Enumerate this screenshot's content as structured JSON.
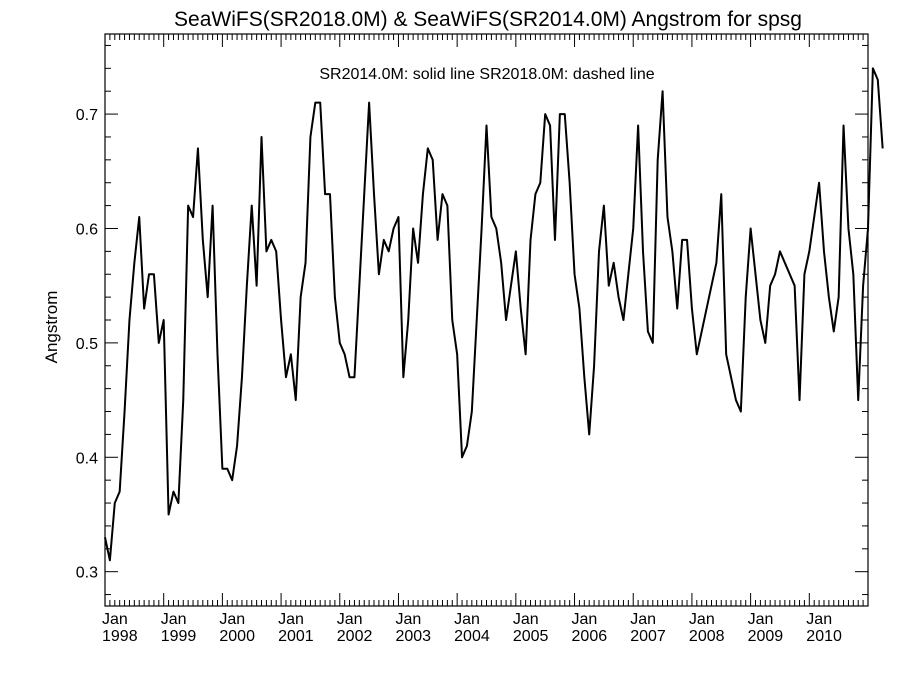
{
  "chart_data": {
    "type": "line",
    "title": "SeaWiFS(SR2018.0M) & SeaWiFS(SR2014.0M)  Angstrom for spsg",
    "annotation": "SR2014.0M: solid line   SR2018.0M: dashed line",
    "xlabel": "",
    "ylabel": "Angstrom",
    "xlim": [
      1998.0,
      2011.0
    ],
    "ylim": [
      0.27,
      0.77
    ],
    "y_ticks": [
      0.3,
      0.4,
      0.5,
      0.6,
      0.7
    ],
    "y_tick_labels": [
      "0.3",
      "0.4",
      "0.5",
      "0.6",
      "0.7"
    ],
    "x_ticks": [
      1998,
      1999,
      2000,
      2001,
      2002,
      2003,
      2004,
      2005,
      2006,
      2007,
      2008,
      2009,
      2010
    ],
    "x_tick_labels": [
      {
        "month": "Jan",
        "year": "1998"
      },
      {
        "month": "Jan",
        "year": "1999"
      },
      {
        "month": "Jan",
        "year": "2000"
      },
      {
        "month": "Jan",
        "year": "2001"
      },
      {
        "month": "Jan",
        "year": "2002"
      },
      {
        "month": "Jan",
        "year": "2003"
      },
      {
        "month": "Jan",
        "year": "2004"
      },
      {
        "month": "Jan",
        "year": "2005"
      },
      {
        "month": "Jan",
        "year": "2006"
      },
      {
        "month": "Jan",
        "year": "2007"
      },
      {
        "month": "Jan",
        "year": "2008"
      },
      {
        "month": "Jan",
        "year": "2009"
      },
      {
        "month": "Jan",
        "year": "2010"
      }
    ],
    "grid": false,
    "line_color": "#000000",
    "series": [
      {
        "name": "SR2014.0M",
        "style": "solid",
        "start": "1998-01",
        "frequency": "monthly",
        "values": [
          0.33,
          0.31,
          0.36,
          0.37,
          0.44,
          0.52,
          0.57,
          0.61,
          0.53,
          0.56,
          0.56,
          0.5,
          0.52,
          0.35,
          0.37,
          0.36,
          0.45,
          0.62,
          0.61,
          0.67,
          0.59,
          0.54,
          0.62,
          0.49,
          0.39,
          0.39,
          0.38,
          0.41,
          0.47,
          0.55,
          0.62,
          0.55,
          0.68,
          0.58,
          0.59,
          0.58,
          0.52,
          0.47,
          0.49,
          0.45,
          0.54,
          0.57,
          0.68,
          0.71,
          0.71,
          0.63,
          0.63,
          0.54,
          0.5,
          0.49,
          0.47,
          0.47,
          0.55,
          0.63,
          0.71,
          0.63,
          0.56,
          0.59,
          0.58,
          0.6,
          0.61,
          0.47,
          0.52,
          0.6,
          0.57,
          0.63,
          0.67,
          0.66,
          0.59,
          0.63,
          0.62,
          0.52,
          0.49,
          0.4,
          0.41,
          0.44,
          0.52,
          0.6,
          0.69,
          0.61,
          0.6,
          0.57,
          0.52,
          0.55,
          0.58,
          0.53,
          0.49,
          0.59,
          0.63,
          0.64,
          0.7,
          0.69,
          0.59,
          0.7,
          0.7,
          0.64,
          0.56,
          0.53,
          0.47,
          0.42,
          0.48,
          0.58,
          0.62,
          0.55,
          0.57,
          0.54,
          0.52,
          0.56,
          0.6,
          0.69,
          0.58,
          0.51,
          0.5,
          0.66,
          0.72,
          0.61,
          0.58,
          0.53,
          0.59,
          0.59,
          0.53,
          0.49,
          0.51,
          0.53,
          0.55,
          0.57,
          0.63,
          0.49,
          0.47,
          0.45,
          0.44,
          0.54,
          0.6,
          0.56,
          0.52,
          0.5,
          0.55,
          0.56,
          0.58,
          0.57,
          0.56,
          0.55,
          0.45,
          0.56,
          0.58,
          0.61,
          0.64,
          0.58,
          0.54,
          0.51,
          0.54,
          0.69,
          0.6,
          0.56,
          0.45,
          0.55,
          0.6,
          0.74,
          0.73,
          0.67
        ]
      }
    ]
  }
}
